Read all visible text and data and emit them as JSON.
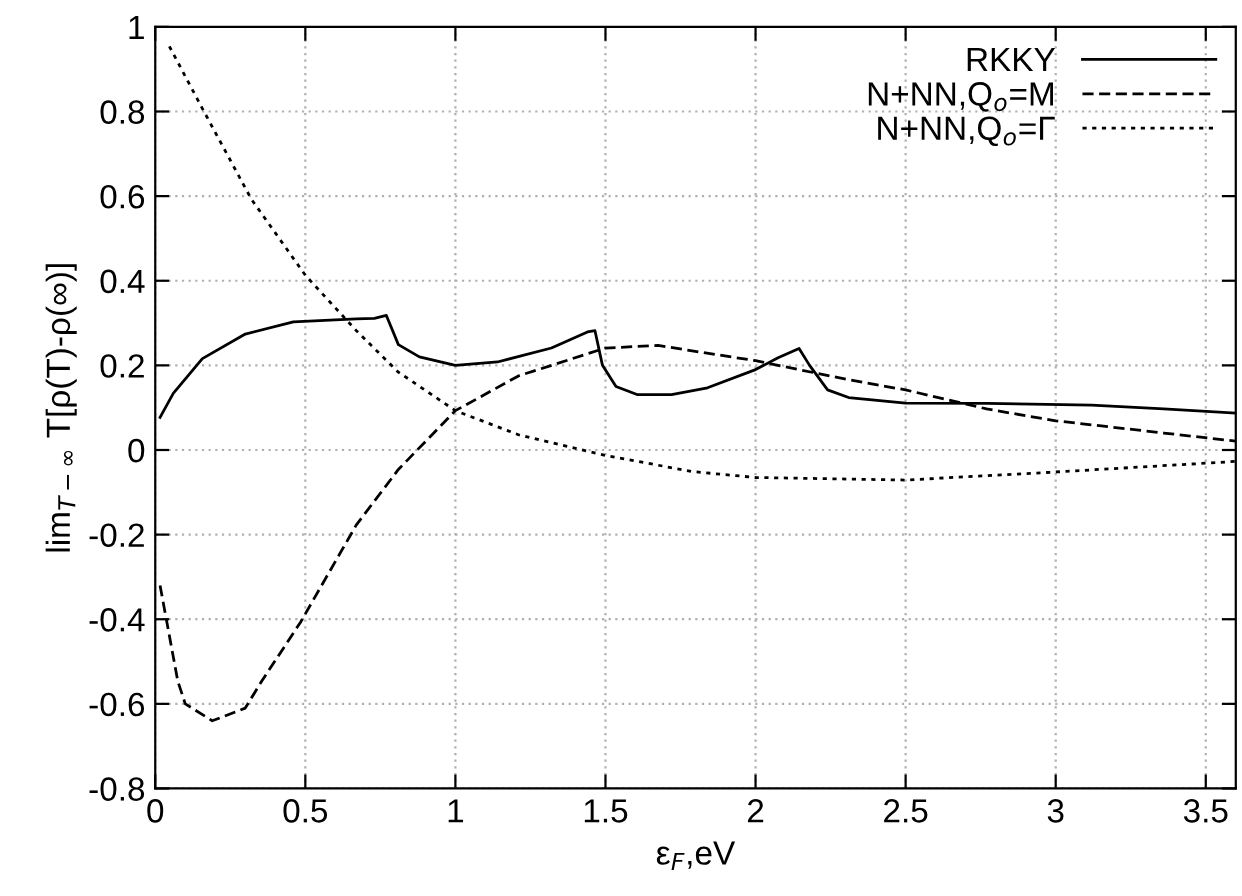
{
  "chart_data": {
    "type": "line",
    "xlabel": "ε$_{F}$,eV",
    "ylabel": "lim$_{T−∞}$ T[ρ(T)-ρ(∞)]",
    "xlim": [
      0,
      3.6
    ],
    "ylim": [
      -0.8,
      1
    ],
    "xticks": [
      0,
      0.5,
      1,
      1.5,
      2,
      2.5,
      3,
      3.5
    ],
    "yticks": [
      -0.8,
      -0.6,
      -0.4,
      -0.2,
      0,
      0.2,
      0.4,
      0.6,
      0.8,
      1
    ],
    "grid": true,
    "legend": "top right",
    "marker": "none",
    "series": [
      {
        "name": "RKKY",
        "color": "#000000",
        "line_style": "solid",
        "x": [
          0.016,
          0.06,
          0.157,
          0.3,
          0.46,
          0.67,
          0.73,
          0.77,
          0.81,
          0.88,
          1.0,
          1.14,
          1.32,
          1.44,
          1.465,
          1.49,
          1.535,
          1.605,
          1.72,
          1.84,
          2.0,
          2.075,
          2.145,
          2.18,
          2.24,
          2.31,
          2.5,
          2.77,
          3.12,
          3.36,
          3.6
        ],
        "values": [
          0.077,
          0.134,
          0.216,
          0.274,
          0.303,
          0.31,
          0.311,
          0.318,
          0.249,
          0.22,
          0.2,
          0.208,
          0.241,
          0.279,
          0.282,
          0.2,
          0.15,
          0.131,
          0.131,
          0.147,
          0.19,
          0.218,
          0.24,
          0.2,
          0.142,
          0.124,
          0.111,
          0.11,
          0.106,
          0.097,
          0.087
        ]
      },
      {
        "name": "N+NN,Q$_{o}$=M",
        "color": "#000000",
        "line_style": "dashed",
        "x": [
          0.016,
          0.075,
          0.1,
          0.19,
          0.3,
          0.355,
          0.484,
          0.67,
          0.81,
          1.0,
          1.21,
          1.5,
          1.675,
          2.0,
          2.31,
          2.5,
          2.77,
          3.0,
          3.36,
          3.6
        ],
        "values": [
          -0.32,
          -0.546,
          -0.6,
          -0.64,
          -0.61,
          -0.546,
          -0.407,
          -0.177,
          -0.046,
          0.093,
          0.175,
          0.241,
          0.247,
          0.211,
          0.166,
          0.142,
          0.097,
          0.069,
          0.04,
          0.021
        ]
      },
      {
        "name": "N+NN,Q$_{o}$=Γ",
        "color": "#000000",
        "line_style": "dotted",
        "x": [
          0.047,
          0.157,
          0.32,
          0.5,
          0.67,
          0.81,
          1.0,
          1.21,
          1.5,
          1.79,
          2.0,
          2.5,
          3.0,
          3.6
        ],
        "values": [
          0.954,
          0.807,
          0.593,
          0.413,
          0.282,
          0.184,
          0.093,
          0.036,
          -0.013,
          -0.051,
          -0.065,
          -0.071,
          -0.052,
          -0.027
        ]
      }
    ]
  }
}
